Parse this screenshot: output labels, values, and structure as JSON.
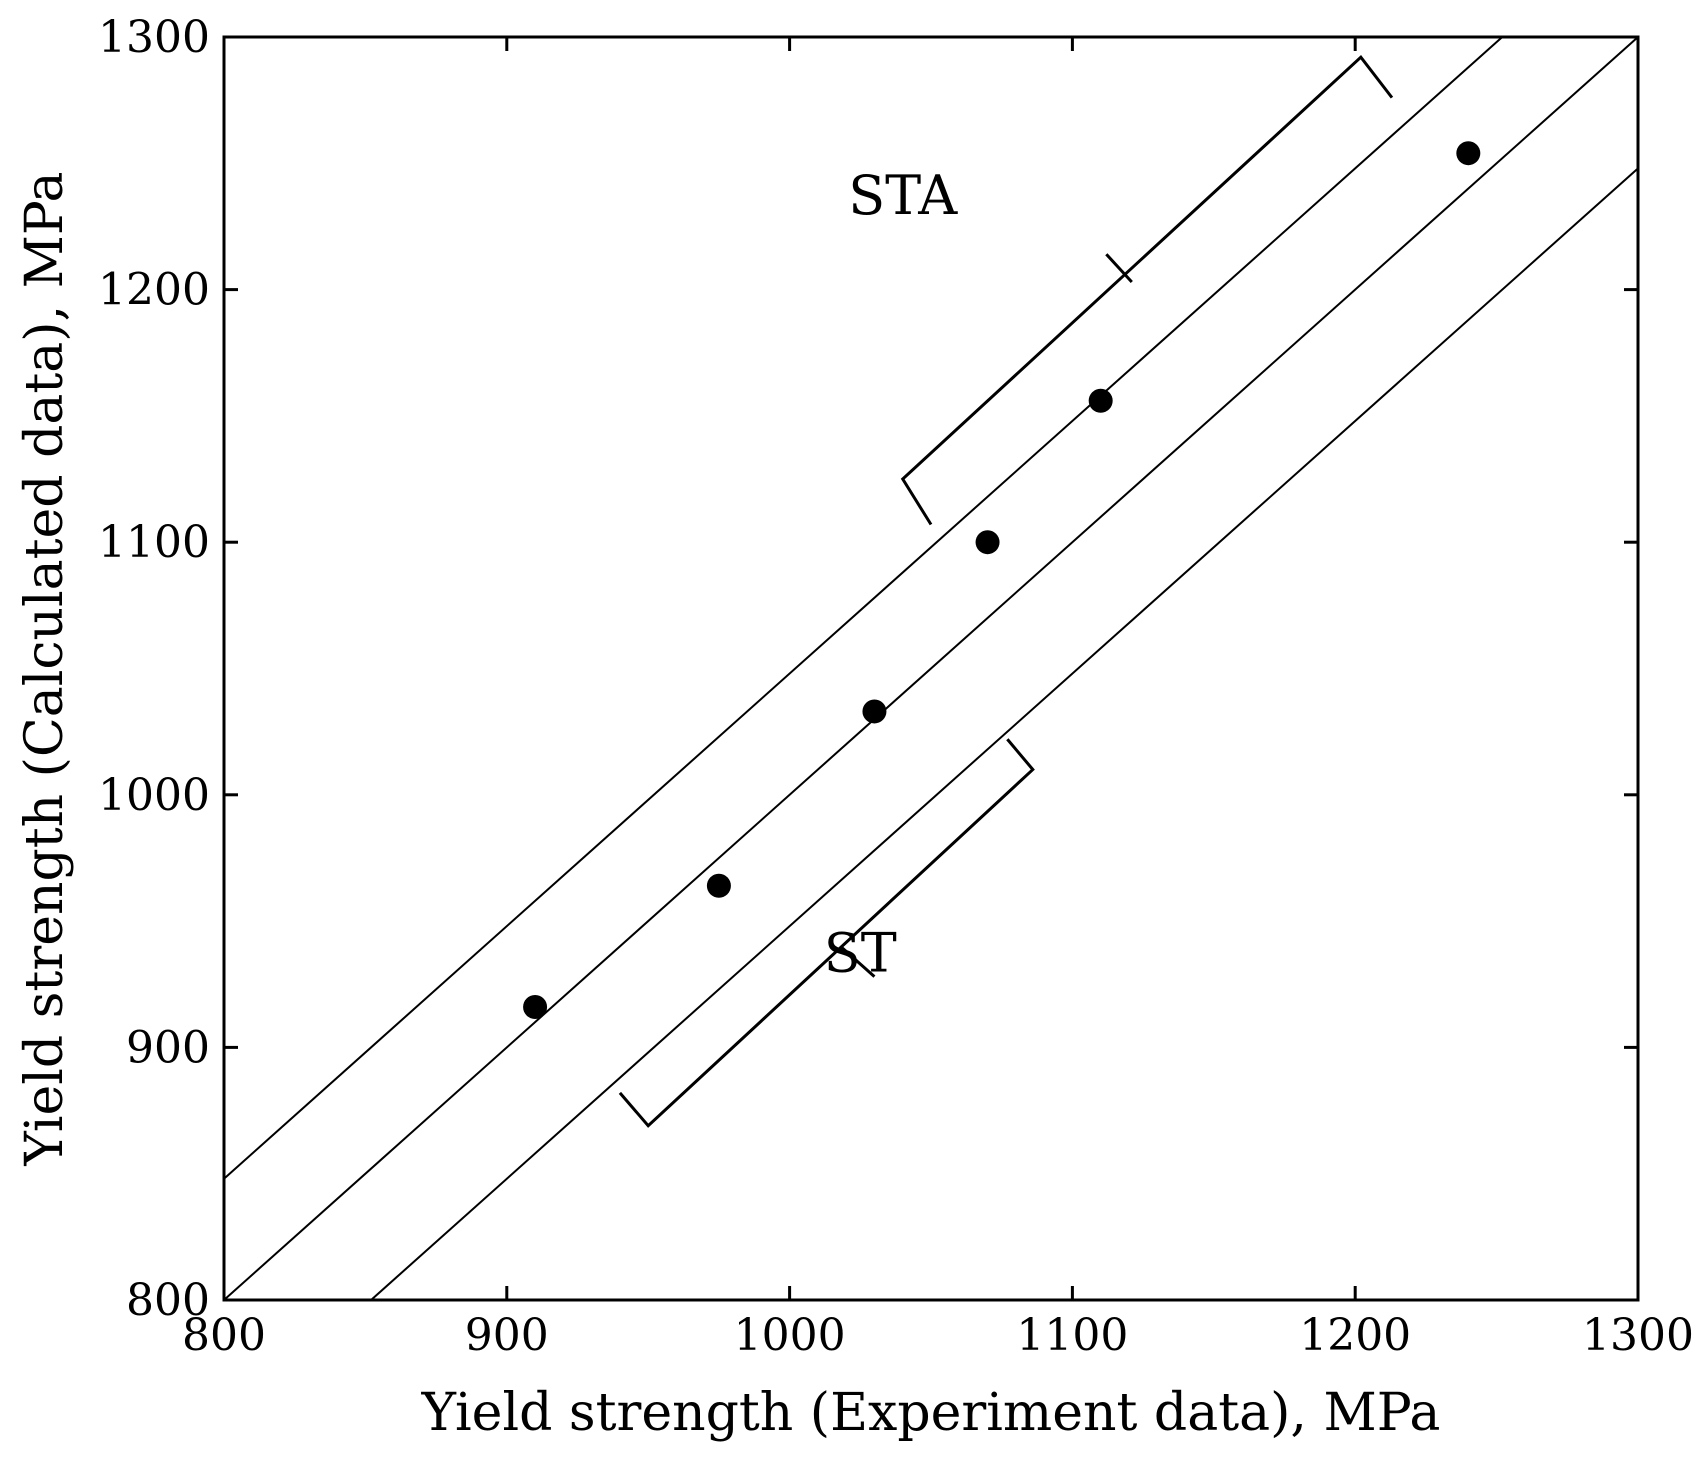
{
  "chart_data": {
    "type": "scatter",
    "title": "",
    "xlabel": "Yield strength  (Experiment data), MPa",
    "ylabel": "Yield strength  (Calculated data), MPa",
    "xlim": [
      800,
      1300
    ],
    "ylim": [
      800,
      1300
    ],
    "xticks": [
      800,
      900,
      1000,
      1100,
      1200,
      1300
    ],
    "yticks": [
      800,
      900,
      1000,
      1100,
      1200,
      1300
    ],
    "xtick_labels": [
      "800",
      "900",
      "1000",
      "1100",
      "1200",
      "1300"
    ],
    "ytick_labels": [
      "800",
      "900",
      "1000",
      "1100",
      "1200",
      "1300"
    ],
    "grid": false,
    "series": [
      {
        "name": "data",
        "marker": "filled-circle",
        "color": "#000000",
        "x": [
          910,
          975,
          1030,
          1070,
          1110,
          1240
        ],
        "y": [
          916,
          964,
          1033,
          1100,
          1156,
          1254
        ]
      }
    ],
    "reference_lines": [
      {
        "name": "upper-band",
        "slope": 1,
        "intercept": 48
      },
      {
        "name": "identity",
        "slope": 1,
        "intercept": 0
      },
      {
        "name": "lower-band",
        "slope": 1,
        "intercept": -52
      }
    ],
    "annotations": [
      {
        "name": "sta",
        "text": "STA",
        "x": 1040,
        "y": 1230,
        "bracket": [
          [
            1050,
            1107
          ],
          [
            1040,
            1125
          ],
          [
            1202,
            1292
          ],
          [
            1213,
            1276
          ]
        ],
        "leader": [
          [
            1112,
            1214
          ],
          [
            1121,
            1203
          ]
        ]
      },
      {
        "name": "st",
        "text": "ST",
        "x": 1025,
        "y": 930,
        "bracket": [
          [
            940,
            882
          ],
          [
            950,
            869
          ],
          [
            1086,
            1010
          ],
          [
            1077,
            1022
          ]
        ],
        "leader": [
          [
            1018,
            940
          ],
          [
            1030,
            928
          ]
        ]
      }
    ]
  }
}
